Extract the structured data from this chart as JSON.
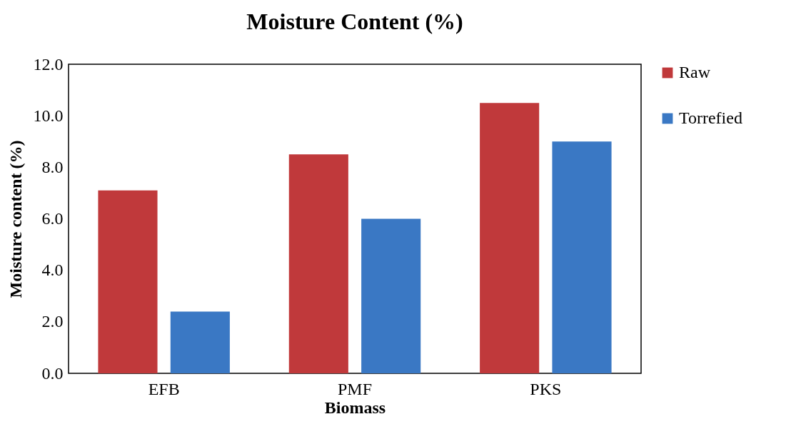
{
  "chart_data": {
    "type": "bar",
    "title": "Moisture Content (%)",
    "xlabel": "Biomass",
    "ylabel": "Moisture content (%)",
    "categories": [
      "EFB",
      "PMF",
      "PKS"
    ],
    "series": [
      {
        "name": "Raw",
        "color": "#c0393b",
        "values": [
          7.1,
          8.5,
          10.5
        ]
      },
      {
        "name": "Torrefied",
        "color": "#3a78c4",
        "values": [
          2.4,
          6.0,
          9.0
        ]
      }
    ],
    "ylim": [
      0,
      12
    ],
    "yticks": [
      {
        "value": 0,
        "label": "0.0"
      },
      {
        "value": 2,
        "label": "2.0"
      },
      {
        "value": 4,
        "label": "4.0"
      },
      {
        "value": 6,
        "label": "6.0"
      },
      {
        "value": 8,
        "label": "8.0"
      },
      {
        "value": 10,
        "label": "10.0"
      },
      {
        "value": 12,
        "label": "12.0"
      }
    ],
    "grid": false,
    "legend": "right"
  }
}
